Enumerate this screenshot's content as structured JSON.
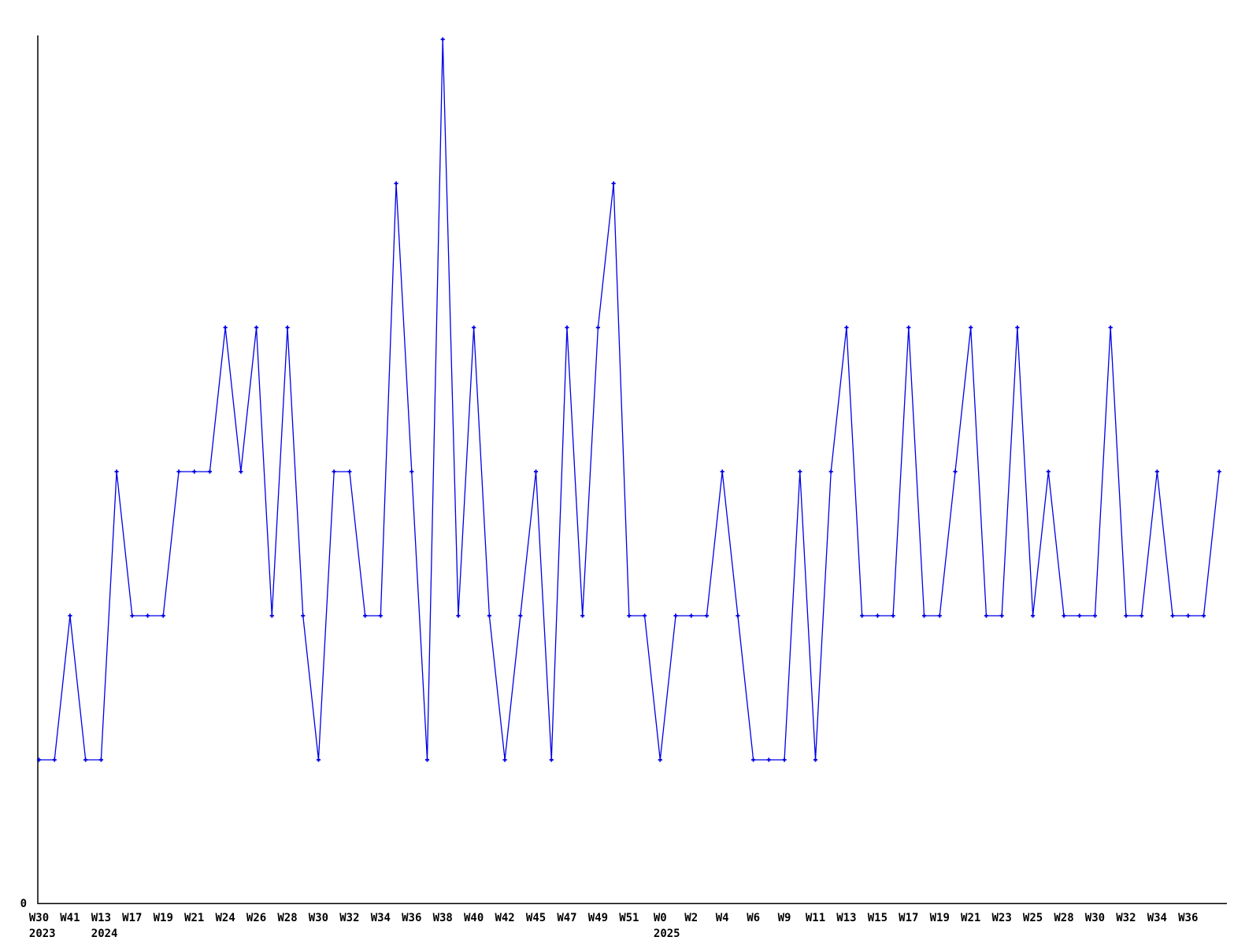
{
  "chart_data": {
    "type": "line",
    "title": "",
    "xlabel": "",
    "ylabel": "",
    "y_origin_label": "0",
    "ylim": [
      0,
      6
    ],
    "grid": false,
    "legend": "none",
    "line_color": "#0000e6",
    "marker_color": "#0000e6",
    "marker_style": "plus",
    "axis_color": "#000000",
    "background_color": "#ffffff",
    "note": "weekly activity counts; x tick labels shown for every second data point",
    "x_ticks": [
      {
        "week": "W30",
        "year": "2023"
      },
      {
        "week": "W41"
      },
      {
        "week": "W13",
        "year": "2024"
      },
      {
        "week": "W17"
      },
      {
        "week": "W19"
      },
      {
        "week": "W21"
      },
      {
        "week": "W24"
      },
      {
        "week": "W26"
      },
      {
        "week": "W28"
      },
      {
        "week": "W30"
      },
      {
        "week": "W32"
      },
      {
        "week": "W34"
      },
      {
        "week": "W36"
      },
      {
        "week": "W38"
      },
      {
        "week": "W40"
      },
      {
        "week": "W42"
      },
      {
        "week": "W45"
      },
      {
        "week": "W47"
      },
      {
        "week": "W49"
      },
      {
        "week": "W51"
      },
      {
        "week": "W0",
        "year": "2025"
      },
      {
        "week": "W2"
      },
      {
        "week": "W4"
      },
      {
        "week": "W6"
      },
      {
        "week": "W9"
      },
      {
        "week": "W11"
      },
      {
        "week": "W13"
      },
      {
        "week": "W15"
      },
      {
        "week": "W17"
      },
      {
        "week": "W19"
      },
      {
        "week": "W21"
      },
      {
        "week": "W23"
      },
      {
        "week": "W25"
      },
      {
        "week": "W28"
      },
      {
        "week": "W30"
      },
      {
        "week": "W32"
      },
      {
        "week": "W34"
      },
      {
        "week": "W36"
      }
    ],
    "values": [
      1,
      1,
      2,
      1,
      1,
      3,
      2,
      2,
      2,
      3,
      3,
      3,
      4,
      3,
      4,
      2,
      4,
      2,
      1,
      3,
      3,
      2,
      2,
      5,
      3,
      1,
      6,
      2,
      4,
      2,
      1,
      2,
      3,
      1,
      4,
      2,
      4,
      5,
      2,
      2,
      1,
      2,
      2,
      2,
      3,
      2,
      1,
      1,
      1,
      3,
      1,
      3,
      4,
      2,
      2,
      2,
      4,
      2,
      2,
      3,
      4,
      2,
      2,
      4,
      2,
      3,
      2,
      2,
      2,
      4,
      2,
      2,
      3,
      2,
      2,
      2,
      3
    ]
  }
}
